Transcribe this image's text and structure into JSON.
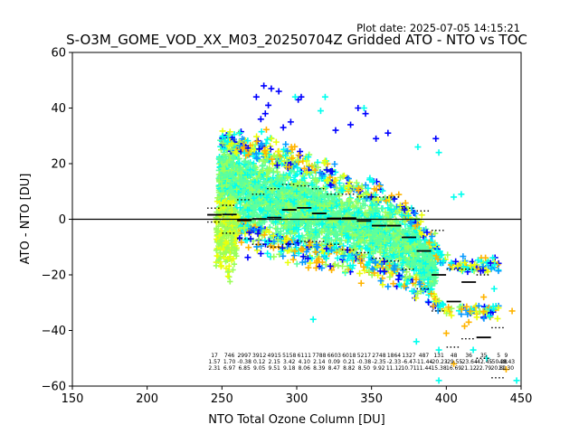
{
  "plot_date": "Plot date: 2025-07-05 14:15:21",
  "colors": {
    "blue": "#0000ff",
    "sky": "#0a9bff",
    "cyan": "#00ffee",
    "mint": "#5affa0",
    "lime": "#9bff5a",
    "yellow": "#eaff0a",
    "gold": "#ffb400",
    "black": "#000000"
  },
  "chart_data": {
    "type": "scatter",
    "title": "S-O3M_GOME_VOD_XX_M03_20250704Z Gridded ATO - NTO vs TOC",
    "xlabel": "NTO Total Ozone Column [DU]",
    "ylabel": "ATO - NTO [DU]",
    "xlim": [
      150,
      450
    ],
    "ylim": [
      -60,
      60
    ],
    "xticks": [
      "150",
      "200",
      "250",
      "300",
      "350",
      "400",
      "450"
    ],
    "yticks": [
      "−60",
      "−40",
      "−20",
      "0",
      "20",
      "40",
      "60"
    ],
    "ytick_values": [
      -60,
      -40,
      -20,
      0,
      20,
      40,
      60
    ],
    "xtick_values": [
      150,
      200,
      250,
      300,
      350,
      400,
      450
    ],
    "zero_line": 0,
    "grid": false,
    "scatter_core": {
      "x_range": [
        245,
        400
      ],
      "description_values": [
        [
          250,
          15,
          25
        ],
        [
          270,
          10,
          30
        ],
        [
          300,
          5,
          30
        ],
        [
          330,
          0,
          25
        ],
        [
          360,
          -5,
          25
        ],
        [
          380,
          -12,
          22
        ],
        [
          400,
          -25,
          15
        ]
      ]
    },
    "medians": {
      "x": [
        245,
        255,
        265,
        275,
        285,
        295,
        305,
        315,
        325,
        335,
        345,
        355,
        365,
        375,
        385,
        395,
        405,
        415,
        425
      ],
      "y": [
        1.6,
        1.7,
        -0.4,
        0.1,
        0.6,
        3.4,
        4.1,
        2.1,
        0.3,
        0.4,
        -0.6,
        -2.3,
        -2.3,
        -6.5,
        -11.4,
        -20.0,
        -29.6,
        -22.6,
        -42.5
      ]
    },
    "upper_dotted": {
      "x": [
        245,
        255,
        265,
        275,
        285,
        295,
        305,
        315,
        325,
        335,
        345,
        355,
        365,
        375,
        385,
        395,
        405,
        415,
        425,
        435
      ],
      "y": [
        4,
        5,
        7,
        9,
        11,
        12.5,
        12,
        11,
        9,
        9,
        8,
        8,
        8,
        4,
        3,
        -4,
        -18,
        -18,
        -20,
        -39
      ]
    },
    "lower_dotted": {
      "x": [
        245,
        255,
        265,
        275,
        285,
        295,
        305,
        315,
        325,
        335,
        345,
        355,
        365,
        375,
        385,
        395,
        405,
        415,
        425,
        435
      ],
      "y": [
        -1,
        -5,
        -7,
        -9,
        -10,
        -9,
        -8,
        -8,
        -9,
        -11,
        -12,
        -14,
        -15,
        -18,
        -25,
        -33,
        -46,
        -43,
        -50,
        -57
      ]
    },
    "stats": {
      "x": [
        245,
        255,
        265,
        275,
        285,
        295,
        305,
        315,
        325,
        335,
        345,
        355,
        365,
        375,
        385,
        395,
        405,
        415,
        425,
        435,
        440
      ],
      "counts": [
        "17",
        "746",
        "2997",
        "3912",
        "4915",
        "5158",
        "6111",
        "7788",
        "6603",
        "6018",
        "5217",
        "2748",
        "1864",
        "1327",
        "487",
        "131",
        "48",
        "36",
        "35",
        "5",
        "9"
      ],
      "means": [
        "1.57",
        "1.70",
        "-0.38",
        "0.12",
        "2.15",
        "3.42",
        "4.10",
        "2.14",
        "0.09",
        "0.21",
        "-0.38",
        "-2.35",
        "-2.33",
        "-6.47",
        "-11.44",
        "-20.23",
        "-29.55",
        "-23.64",
        "-42.45",
        "-50.28",
        "-48.43"
      ],
      "stds": [
        "2.31",
        "6.97",
        "6.85",
        "9.05",
        "9.51",
        "9.18",
        "8.06",
        "8.39",
        "8.47",
        "8.82",
        "8.50",
        "9.92",
        "11.12",
        "10.71",
        "11.44",
        "15.38",
        "16.69",
        "21.12",
        "22.79",
        "20.81",
        "11.30"
      ]
    }
  }
}
